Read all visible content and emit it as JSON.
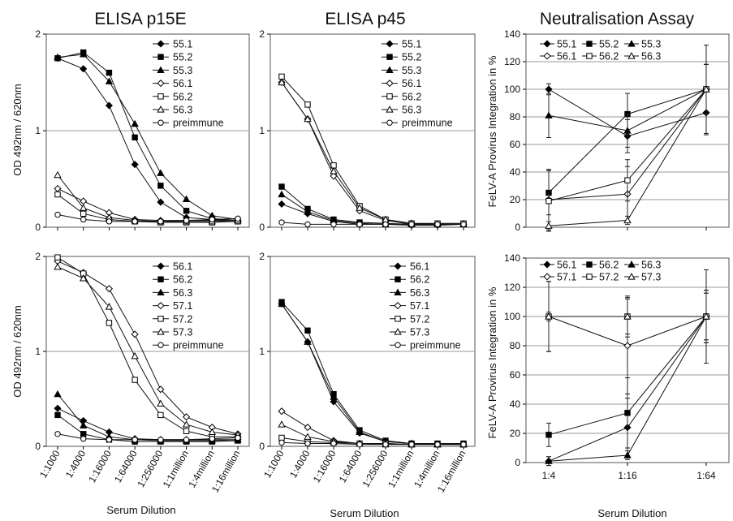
{
  "titles": {
    "col1": "ELISA p15E",
    "col2": "ELISA p45",
    "col3": "Neutralisation Assay"
  },
  "axis_labels": {
    "od": "OD 492nm / 620nm",
    "provirus": "FeLV-A Provirus Integration in %",
    "serum": "Serum Dilution"
  },
  "dilution_ticks": [
    "1:1000",
    "1:4000",
    "1:16000",
    "1:64000",
    "1:256000",
    "1:1million",
    "1:4million",
    "1:16million"
  ],
  "neut_ticks": [
    "1:4",
    "1:16",
    "1:64"
  ],
  "chart_data": [
    {
      "id": "p15e_top",
      "type": "line",
      "title": "ELISA p15E",
      "ylabel": "OD 492nm / 620nm",
      "xlabel": "",
      "categories": [
        "1:1000",
        "1:4000",
        "1:16000",
        "1:64000",
        "1:256000",
        "1:1million",
        "1:4million",
        "1:16million"
      ],
      "ylim": [
        0,
        2
      ],
      "yticks": [
        0,
        1,
        2
      ],
      "grid": true,
      "legend": "top-right",
      "show_xticks": false,
      "series": [
        {
          "name": "55.1",
          "marker": "diamond",
          "fill": "filled",
          "values": [
            1.75,
            1.64,
            1.26,
            0.65,
            0.26,
            0.1,
            0.08,
            0.07
          ]
        },
        {
          "name": "55.2",
          "marker": "square",
          "fill": "filled",
          "values": [
            1.75,
            1.81,
            1.6,
            0.93,
            0.43,
            0.17,
            0.09,
            0.07
          ]
        },
        {
          "name": "55.3",
          "marker": "triangle",
          "fill": "filled",
          "values": [
            1.76,
            1.79,
            1.51,
            1.07,
            0.56,
            0.29,
            0.12,
            0.08
          ]
        },
        {
          "name": "56.1",
          "marker": "diamond",
          "fill": "open",
          "values": [
            0.4,
            0.27,
            0.15,
            0.08,
            0.07,
            0.07,
            0.07,
            0.07
          ]
        },
        {
          "name": "56.2",
          "marker": "square",
          "fill": "open",
          "values": [
            0.34,
            0.14,
            0.08,
            0.06,
            0.05,
            0.05,
            0.05,
            0.06
          ]
        },
        {
          "name": "56.3",
          "marker": "triangle",
          "fill": "open",
          "values": [
            0.54,
            0.2,
            0.1,
            0.07,
            0.06,
            0.06,
            0.06,
            0.07
          ]
        },
        {
          "name": "preimmune",
          "marker": "circle",
          "fill": "open",
          "values": [
            0.13,
            0.08,
            0.06,
            0.06,
            0.06,
            0.07,
            0.08,
            0.09
          ]
        }
      ]
    },
    {
      "id": "p45_top",
      "type": "line",
      "title": "ELISA p45",
      "ylabel": "",
      "xlabel": "",
      "categories": [
        "1:1000",
        "1:4000",
        "1:16000",
        "1:64000",
        "1:256000",
        "1:1million",
        "1:4million",
        "1:16million"
      ],
      "ylim": [
        0,
        2
      ],
      "yticks": [
        0,
        1,
        2
      ],
      "grid": true,
      "legend": "top-right",
      "show_xticks": false,
      "series": [
        {
          "name": "55.1",
          "marker": "diamond",
          "fill": "filled",
          "values": [
            0.24,
            0.14,
            0.06,
            0.03,
            0.03,
            0.02,
            0.02,
            0.03
          ]
        },
        {
          "name": "55.2",
          "marker": "square",
          "fill": "filled",
          "values": [
            0.42,
            0.19,
            0.08,
            0.05,
            0.04,
            0.03,
            0.03,
            0.03
          ]
        },
        {
          "name": "55.3",
          "marker": "triangle",
          "fill": "filled",
          "values": [
            0.34,
            0.16,
            0.07,
            0.04,
            0.03,
            0.03,
            0.03,
            0.03
          ]
        },
        {
          "name": "56.1",
          "marker": "diamond",
          "fill": "open",
          "values": [
            1.5,
            1.12,
            0.53,
            0.17,
            0.07,
            0.03,
            0.03,
            0.03
          ]
        },
        {
          "name": "56.2",
          "marker": "square",
          "fill": "open",
          "values": [
            1.56,
            1.27,
            0.64,
            0.22,
            0.08,
            0.04,
            0.04,
            0.04
          ]
        },
        {
          "name": "56.3",
          "marker": "triangle",
          "fill": "open",
          "values": [
            1.5,
            1.12,
            0.58,
            0.2,
            0.08,
            0.04,
            0.03,
            0.03
          ]
        },
        {
          "name": "preimmune",
          "marker": "circle",
          "fill": "open",
          "values": [
            0.05,
            0.03,
            0.03,
            0.03,
            0.03,
            0.03,
            0.03,
            0.03
          ]
        }
      ]
    },
    {
      "id": "neut_top",
      "type": "line",
      "title": "Neutralisation Assay",
      "ylabel": "FeLV-A Provirus Integration in %",
      "xlabel": "",
      "categories": [
        "1:4",
        "1:16",
        "1:64"
      ],
      "ylim": [
        0,
        140
      ],
      "yticks": [
        0,
        20,
        40,
        60,
        80,
        100,
        120,
        140
      ],
      "grid": true,
      "legend": "top",
      "show_xticks": false,
      "series": [
        {
          "name": "55.1",
          "marker": "diamond",
          "fill": "filled",
          "values": [
            100,
            66,
            83
          ],
          "err": [
            4,
            12,
            16
          ]
        },
        {
          "name": "55.2",
          "marker": "square",
          "fill": "filled",
          "values": [
            25,
            82,
            100
          ],
          "err": [
            16,
            15,
            32
          ]
        },
        {
          "name": "55.3",
          "marker": "triangle",
          "fill": "filled",
          "values": [
            81,
            70,
            100
          ],
          "err": [
            16,
            12,
            18
          ]
        },
        {
          "name": "56.1",
          "marker": "diamond",
          "fill": "open",
          "values": [
            20,
            24,
            100
          ],
          "err": [
            22,
            20,
            18
          ]
        },
        {
          "name": "56.2",
          "marker": "square",
          "fill": "open",
          "values": [
            19,
            34,
            100
          ],
          "err": [
            22,
            15,
            18
          ]
        },
        {
          "name": "56.3",
          "marker": "triangle",
          "fill": "open",
          "values": [
            1,
            5,
            100
          ],
          "err": [
            3,
            3,
            18
          ]
        }
      ]
    },
    {
      "id": "p15e_bottom",
      "type": "line",
      "title": "",
      "ylabel": "OD 492nm / 620nm",
      "xlabel": "Serum Dilution",
      "categories": [
        "1:1000",
        "1:4000",
        "1:16000",
        "1:64000",
        "1:256000",
        "1:1million",
        "1:4million",
        "1:16million"
      ],
      "ylim": [
        0,
        2
      ],
      "yticks": [
        0,
        1,
        2
      ],
      "grid": true,
      "legend": "top-right",
      "show_xticks": true,
      "series": [
        {
          "name": "56.1",
          "marker": "diamond",
          "fill": "filled",
          "values": [
            0.4,
            0.27,
            0.15,
            0.08,
            0.07,
            0.07,
            0.07,
            0.07
          ]
        },
        {
          "name": "56.2",
          "marker": "square",
          "fill": "filled",
          "values": [
            0.33,
            0.13,
            0.07,
            0.05,
            0.05,
            0.05,
            0.05,
            0.06
          ]
        },
        {
          "name": "56.3",
          "marker": "triangle",
          "fill": "filled",
          "values": [
            0.55,
            0.22,
            0.1,
            0.07,
            0.06,
            0.06,
            0.06,
            0.07
          ]
        },
        {
          "name": "57.1",
          "marker": "diamond",
          "fill": "open",
          "values": [
            1.95,
            1.83,
            1.66,
            1.18,
            0.6,
            0.31,
            0.2,
            0.13
          ]
        },
        {
          "name": "57.2",
          "marker": "square",
          "fill": "open",
          "values": [
            1.99,
            1.82,
            1.3,
            0.7,
            0.33,
            0.16,
            0.1,
            0.1
          ]
        },
        {
          "name": "57.3",
          "marker": "triangle",
          "fill": "open",
          "values": [
            1.89,
            1.77,
            1.47,
            0.95,
            0.45,
            0.23,
            0.15,
            0.12
          ]
        },
        {
          "name": "preimmune",
          "marker": "circle",
          "fill": "open",
          "values": [
            0.13,
            0.08,
            0.07,
            0.07,
            0.07,
            0.07,
            0.08,
            0.09
          ]
        }
      ]
    },
    {
      "id": "p45_bottom",
      "type": "line",
      "title": "",
      "ylabel": "",
      "xlabel": "Serum Dilution",
      "categories": [
        "1:1000",
        "1:4000",
        "1:16000",
        "1:64000",
        "1:256000",
        "1:1million",
        "1:4million",
        "1:16million"
      ],
      "ylim": [
        0,
        2
      ],
      "yticks": [
        0,
        1,
        2
      ],
      "grid": true,
      "legend": "top-right",
      "show_xticks": true,
      "series": [
        {
          "name": "56.1",
          "marker": "diamond",
          "fill": "filled",
          "values": [
            1.5,
            1.1,
            0.47,
            0.14,
            0.05,
            0.03,
            0.02,
            0.02
          ]
        },
        {
          "name": "56.2",
          "marker": "square",
          "fill": "filled",
          "values": [
            1.52,
            1.22,
            0.55,
            0.17,
            0.06,
            0.03,
            0.03,
            0.03
          ]
        },
        {
          "name": "56.3",
          "marker": "triangle",
          "fill": "filled",
          "values": [
            1.5,
            1.1,
            0.52,
            0.15,
            0.05,
            0.03,
            0.02,
            0.02
          ]
        },
        {
          "name": "57.1",
          "marker": "diamond",
          "fill": "open",
          "values": [
            0.37,
            0.2,
            0.06,
            0.03,
            0.03,
            0.02,
            0.02,
            0.02
          ]
        },
        {
          "name": "57.2",
          "marker": "square",
          "fill": "open",
          "values": [
            0.09,
            0.05,
            0.04,
            0.03,
            0.03,
            0.02,
            0.02,
            0.02
          ]
        },
        {
          "name": "57.3",
          "marker": "triangle",
          "fill": "open",
          "values": [
            0.23,
            0.1,
            0.05,
            0.03,
            0.02,
            0.02,
            0.02,
            0.02
          ]
        },
        {
          "name": "preimmune",
          "marker": "circle",
          "fill": "open",
          "values": [
            0.04,
            0.03,
            0.03,
            0.02,
            0.02,
            0.02,
            0.02,
            0.02
          ]
        }
      ]
    },
    {
      "id": "neut_bottom",
      "type": "line",
      "title": "",
      "ylabel": "FeLV-A Provirus Integration in %",
      "xlabel": "Serum Dilution",
      "categories": [
        "1:4",
        "1:16",
        "1:64"
      ],
      "ylim": [
        0,
        140
      ],
      "yticks": [
        0,
        20,
        40,
        60,
        80,
        100,
        120,
        140
      ],
      "grid": true,
      "legend": "top",
      "show_xticks": true,
      "series": [
        {
          "name": "56.1",
          "marker": "diamond",
          "fill": "filled",
          "values": [
            1,
            24,
            100
          ],
          "err": [
            3,
            20,
            18
          ]
        },
        {
          "name": "56.2",
          "marker": "square",
          "fill": "filled",
          "values": [
            19,
            34,
            100
          ],
          "err": [
            8,
            24,
            32
          ]
        },
        {
          "name": "56.3",
          "marker": "triangle",
          "fill": "filled",
          "values": [
            1,
            5,
            100
          ],
          "err": [
            3,
            3,
            18
          ]
        },
        {
          "name": "57.1",
          "marker": "diamond",
          "fill": "open",
          "values": [
            100,
            80,
            100
          ],
          "err": [
            3,
            33,
            16
          ]
        },
        {
          "name": "57.2",
          "marker": "square",
          "fill": "open",
          "values": [
            100,
            100,
            100
          ],
          "err": [
            24,
            12,
            18
          ]
        },
        {
          "name": "57.3",
          "marker": "triangle",
          "fill": "open",
          "values": [
            100,
            100,
            100
          ],
          "err": [
            24,
            14,
            16
          ]
        }
      ]
    }
  ]
}
